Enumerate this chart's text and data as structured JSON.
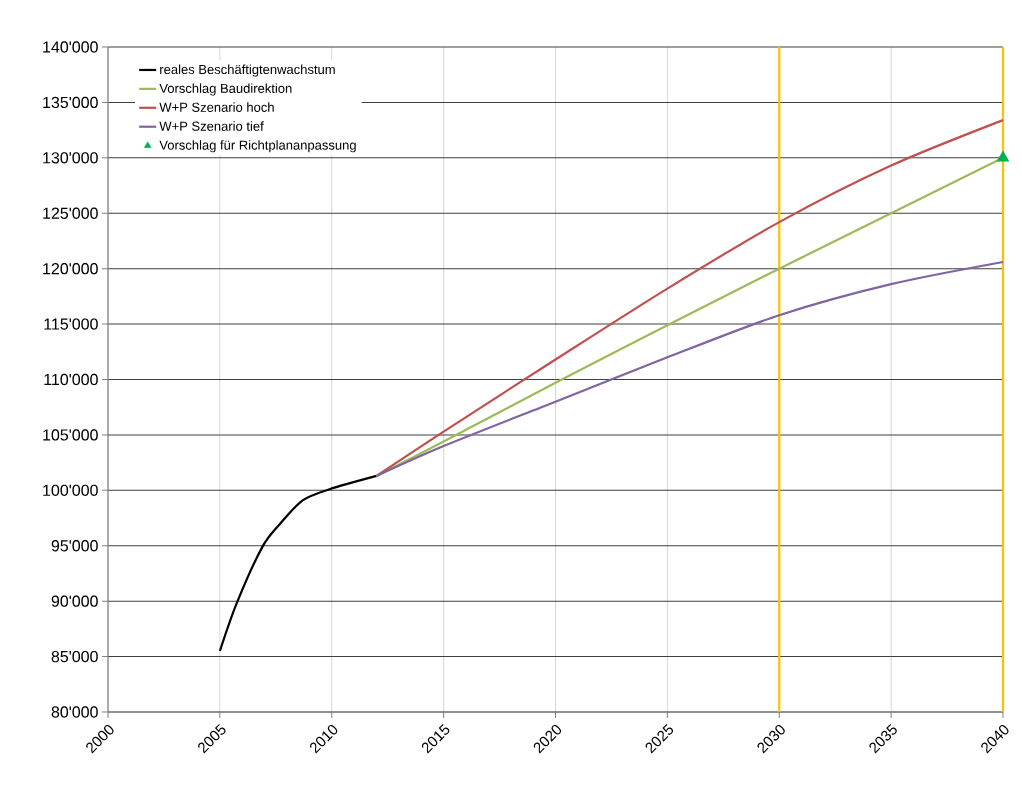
{
  "chart_data": {
    "type": "line",
    "xlim": [
      2000,
      2040
    ],
    "xticks": [
      2000,
      2005,
      2010,
      2015,
      2020,
      2025,
      2030,
      2035,
      2040
    ],
    "ylim": [
      80000,
      140000
    ],
    "yticks": [
      {
        "value": 80000,
        "label": "80'000"
      },
      {
        "value": 85000,
        "label": "85'000"
      },
      {
        "value": 90000,
        "label": "90'000"
      },
      {
        "value": 95000,
        "label": "95'000"
      },
      {
        "value": 100000,
        "label": "100'000"
      },
      {
        "value": 105000,
        "label": "105'000"
      },
      {
        "value": 110000,
        "label": "110'000"
      },
      {
        "value": 115000,
        "label": "115'000"
      },
      {
        "value": 120000,
        "label": "120'000"
      },
      {
        "value": 125000,
        "label": "125'000"
      },
      {
        "value": 130000,
        "label": "130'000"
      },
      {
        "value": 135000,
        "label": "135'000"
      },
      {
        "value": 140000,
        "label": "140'000"
      }
    ],
    "grid": true,
    "legend": "top left",
    "series": [
      {
        "name": "Vorschlag für  Richtplananpassung",
        "type": "scatter",
        "marker": "triangle",
        "color": "#00b050",
        "x": [
          2040
        ],
        "values": [
          130000
        ]
      },
      {
        "name": "reales Beschäftigtenwachstum",
        "color": "#000000",
        "x": [
          2005,
          2005.75,
          2006.9,
          2007.7,
          2008.7,
          2009.9,
          2012
        ],
        "values": [
          85500,
          89800,
          94900,
          97000,
          99100,
          100100,
          101300
        ]
      },
      {
        "name": "Vorschlag Baudirektion",
        "color": "#9bbb59",
        "x": [
          2012,
          2015,
          2020,
          2025,
          2030,
          2035,
          2040
        ],
        "values": [
          101300,
          104400,
          109700,
          114900,
          120000,
          125000,
          130000
        ]
      },
      {
        "name": "W+P Szenario hoch",
        "color": "#c0504d",
        "x": [
          2012,
          2015,
          2020,
          2025,
          2030,
          2035,
          2040
        ],
        "values": [
          101300,
          105300,
          111800,
          118200,
          124200,
          129300,
          133400
        ]
      },
      {
        "name": "W+P Szenario tief",
        "color": "#8064a2",
        "x": [
          2012,
          2015,
          2020,
          2025,
          2030,
          2035,
          2040
        ],
        "values": [
          101300,
          104000,
          108000,
          112000,
          115800,
          118600,
          120600
        ]
      }
    ],
    "ref_lines": [
      {
        "axis": "x",
        "value": 2030,
        "color": "#ffc000"
      },
      {
        "axis": "x",
        "value": 2040,
        "color": "#ffc000"
      }
    ]
  }
}
